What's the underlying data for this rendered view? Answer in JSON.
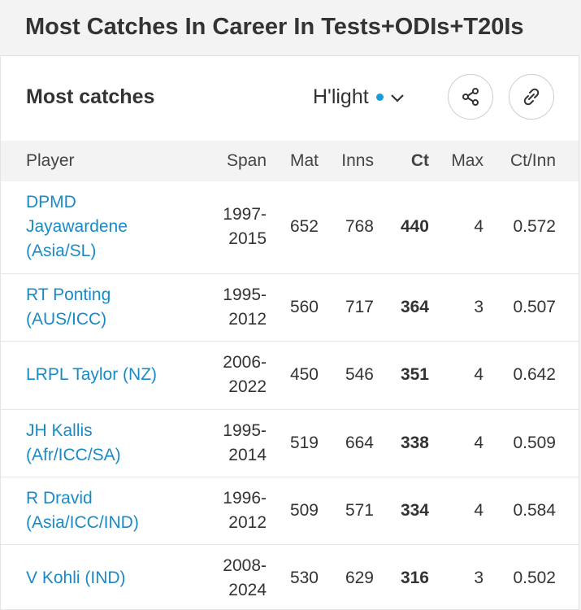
{
  "header": {
    "title": "Most Catches In Career In Tests+ODIs+T20Is"
  },
  "card": {
    "title": "Most catches",
    "highlight": "H'light"
  },
  "table": {
    "columns": [
      "Player",
      "Span",
      "Mat",
      "Inns",
      "Ct",
      "Max",
      "Ct/Inn"
    ],
    "rows": [
      [
        "DPMD Jayawardene (Asia/SL)",
        "1997-2015",
        652,
        768,
        440,
        4,
        0.572
      ],
      [
        "RT Ponting (AUS/ICC)",
        "1995-2012",
        560,
        717,
        364,
        3,
        0.507
      ],
      [
        "LRPL Taylor (NZ)",
        "2006-2022",
        450,
        546,
        351,
        4,
        0.642
      ],
      [
        "JH Kallis (Afr/ICC/SA)",
        "1995-2014",
        519,
        664,
        338,
        4,
        0.509
      ],
      [
        "R Dravid (Asia/ICC/IND)",
        "1996-2012",
        509,
        571,
        334,
        4,
        0.584
      ],
      [
        "V Kohli (IND)",
        "2008-2024",
        530,
        629,
        316,
        3,
        0.502
      ]
    ]
  }
}
